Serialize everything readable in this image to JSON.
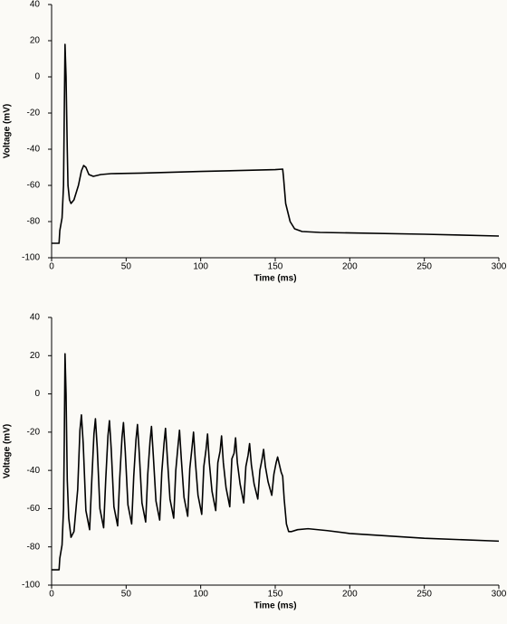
{
  "chart_data": [
    {
      "type": "line",
      "xlabel": "Time (ms)",
      "ylabel": "Voltage (mV)",
      "xlim": [
        0,
        300
      ],
      "xticks": [
        0,
        50,
        100,
        150,
        200,
        250,
        300
      ],
      "ylim": [
        -100,
        40
      ],
      "yticks": [
        -100,
        -80,
        -60,
        -40,
        -20,
        0,
        20,
        40
      ],
      "series": [
        {
          "color": "#000000",
          "x": [
            0,
            5,
            5.5,
            7,
            8,
            8.5,
            9,
            9.7,
            10.5,
            11,
            12,
            13,
            15,
            18,
            20,
            21.5,
            23,
            25,
            28,
            33,
            40,
            60,
            100,
            150,
            155,
            155.5,
            157,
            160,
            163,
            168,
            180,
            250,
            300
          ],
          "values": [
            -92,
            -92,
            -85,
            -78,
            -60,
            -20,
            18,
            0,
            -40,
            -60,
            -68,
            -70,
            -68,
            -60,
            -52,
            -49,
            -50,
            -54,
            -55,
            -54,
            -53.5,
            -53.2,
            -52.3,
            -51.3,
            -51,
            -55,
            -70,
            -80,
            -84,
            -85.5,
            -86,
            -87,
            -88
          ]
        }
      ]
    },
    {
      "type": "line",
      "xlabel": "Time (ms)",
      "ylabel": "Voltage (mV)",
      "xlim": [
        0,
        300
      ],
      "xticks": [
        0,
        50,
        100,
        150,
        200,
        250,
        300
      ],
      "ylim": [
        -100,
        40
      ],
      "yticks": [
        -100,
        -80,
        -60,
        -40,
        -20,
        0,
        20,
        40
      ],
      "series": [
        {
          "color": "#000000",
          "x": [
            0,
            5,
            5.5,
            7,
            8,
            8.5,
            9,
            9.7,
            10.5,
            11.5,
            13,
            15,
            17.5,
            19,
            20,
            21.2,
            23,
            25.5,
            26.9,
            28.4,
            29.4,
            30.6,
            32.4,
            34.9,
            36.3,
            37.8,
            38.8,
            40,
            41.8,
            44.3,
            45.7,
            47.2,
            48.2,
            49.4,
            51.2,
            53.7,
            55.1,
            56.6,
            57.6,
            58.8,
            60.6,
            63.1,
            64.5,
            66,
            67,
            68.2,
            70,
            72.5,
            73.9,
            75.4,
            76.4,
            77.6,
            79.4,
            81.9,
            83.3,
            84.8,
            85.8,
            87,
            88.8,
            91.3,
            92.7,
            94.2,
            95.2,
            96.4,
            98.2,
            100.7,
            102.1,
            103.6,
            104.6,
            105.8,
            107.6,
            110.1,
            111.5,
            113,
            114,
            115.2,
            117,
            119.5,
            120.9,
            122.4,
            123.4,
            124.6,
            126.4,
            128.9,
            130.3,
            131.8,
            132.8,
            134,
            135.8,
            138.3,
            139.7,
            141.2,
            142.2,
            143.4,
            145.2,
            147.7,
            149.1,
            150.6,
            151.6,
            152.8,
            154,
            155,
            156,
            157.5,
            159,
            161,
            165,
            172,
            185,
            200,
            250,
            300
          ],
          "values": [
            -92,
            -92,
            -86,
            -79,
            -60,
            -25,
            21,
            0,
            -45,
            -65,
            -75,
            -72,
            -50,
            -19,
            -11,
            -26,
            -61,
            -71,
            -46,
            -21,
            -13,
            -28,
            -60,
            -70,
            -45,
            -22,
            -14,
            -29,
            -59,
            -69,
            -44,
            -23,
            -15,
            -30,
            -58,
            -68,
            -43,
            -24,
            -16,
            -31,
            -57,
            -67,
            -42,
            -25,
            -17,
            -32,
            -56,
            -66,
            -41,
            -26,
            -18,
            -33,
            -55,
            -65,
            -40,
            -27,
            -19,
            -34,
            -54,
            -64,
            -39,
            -28,
            -20,
            -35,
            -53,
            -63,
            -38,
            -29,
            -21,
            -36,
            -51,
            -61,
            -36,
            -30,
            -22,
            -36,
            -49,
            -59,
            -34,
            -31,
            -23,
            -36,
            -47,
            -57,
            -38,
            -32,
            -26,
            -37,
            -47,
            -55,
            -40,
            -34,
            -29,
            -38,
            -46,
            -53,
            -42,
            -36,
            -33,
            -37,
            -41,
            -43,
            -55,
            -68,
            -72,
            -72,
            -71,
            -70.5,
            -71.5,
            -73,
            -75.5,
            -77
          ]
        }
      ]
    }
  ]
}
